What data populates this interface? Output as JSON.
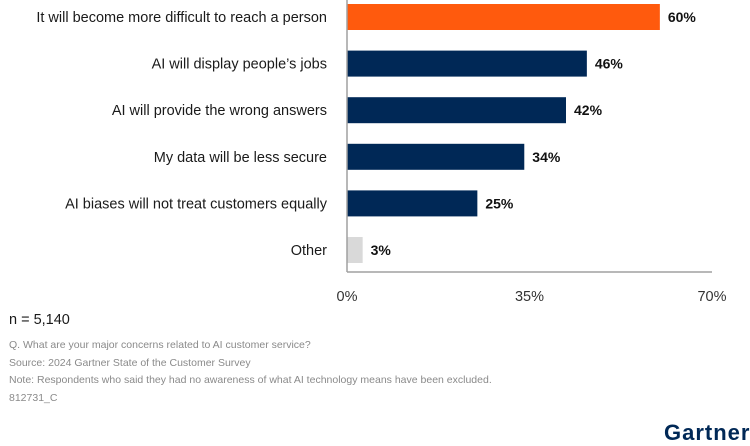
{
  "chart_data": {
    "type": "bar",
    "orientation": "horizontal",
    "title": "",
    "xlabel": "",
    "ylabel": "",
    "categories": [
      "It will become more difficult to reach a person",
      "AI will display people’s jobs",
      "AI will provide the wrong answers",
      "My data will be less secure",
      "AI biases will not treat customers equally",
      "Other"
    ],
    "values": [
      60,
      46,
      42,
      34,
      25,
      3
    ],
    "value_labels": [
      "60%",
      "46%",
      "42%",
      "34%",
      "25%",
      "3%"
    ],
    "bar_colors": [
      "#FF5A0D",
      "#002856",
      "#002856",
      "#002856",
      "#002856",
      "#D9D9D9"
    ],
    "xlim": [
      0,
      70
    ],
    "xticks": [
      0,
      35,
      70
    ],
    "xtick_labels": [
      "0%",
      "35%",
      "70%"
    ],
    "grid": false,
    "legend": "none"
  },
  "footer": {
    "n": "n = 5,140",
    "question": "Q. What are your major concerns related to AI customer service?",
    "source": "Source: 2024 Gartner State of the Customer Survey",
    "note": "Note: Respondents who said they had no awareness of what AI technology means have been excluded.",
    "code": "812731_C"
  },
  "logo": "Gartner"
}
